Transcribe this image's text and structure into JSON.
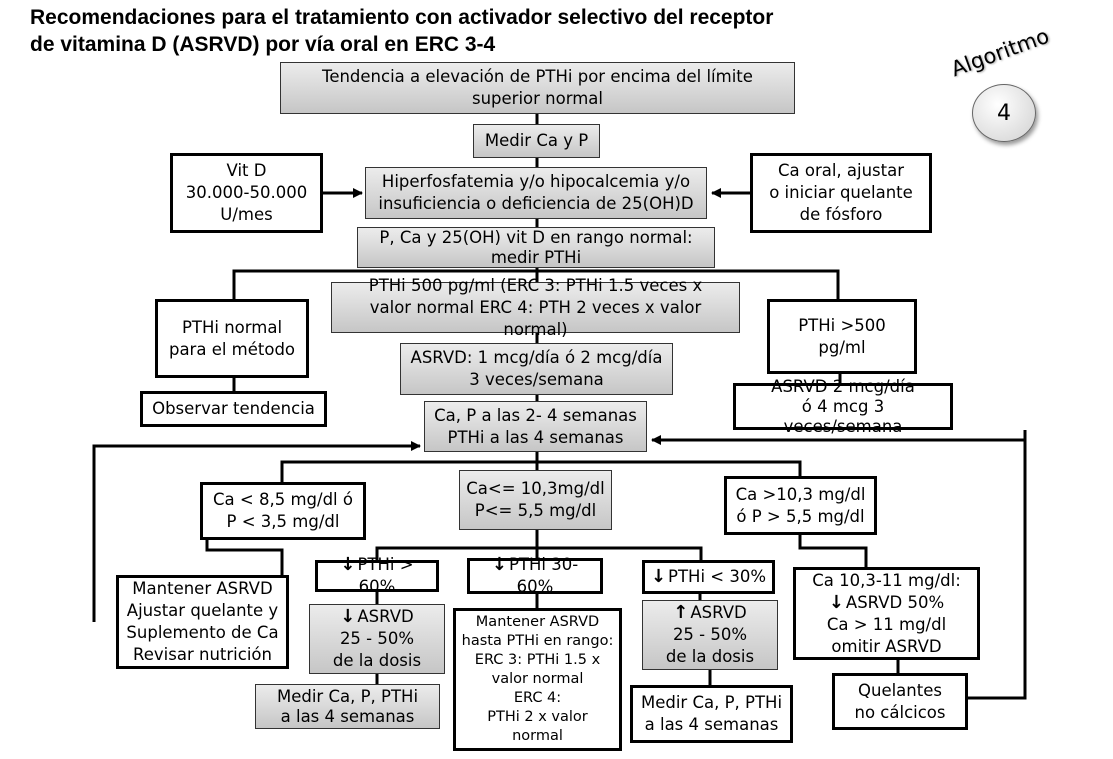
{
  "title": {
    "line1": "Recomendaciones para el tratamiento con activador selectivo del receptor",
    "line2": "de vitamina D (ASRVD) por vía oral en ERC 3-4"
  },
  "badge": {
    "label": "Algoritmo",
    "number": "4"
  },
  "nodes": {
    "tendencia": [
      "Tendencia a elevación de PTHi por encima del límite",
      "superior normal"
    ],
    "medir_ca_p": [
      "Medir Ca y P"
    ],
    "hiperfosfatemia": [
      "Hiperfosfatemia y/o hipocalcemia y/o",
      "insuficiencia o deficiencia de 25(OH)D"
    ],
    "vit_d": [
      "Vit D",
      "30.000-50.000",
      "U/mes"
    ],
    "ca_oral": [
      "Ca oral, ajustar",
      "o iniciar quelante",
      "de fósforo"
    ],
    "rango_normal": [
      "P, Ca y 25(OH) vit D en rango normal:",
      "medir PTHi"
    ],
    "pthi_500": [
      "PTHi 500 pg/ml (ERC 3: PTHi 1.5 veces x",
      "valor normal ERC 4: PTH 2 veces x valor normal)"
    ],
    "pthi_normal": [
      "PTHi normal",
      "para el método"
    ],
    "observar": [
      "Observar tendencia"
    ],
    "asrvd_dosis": [
      "ASRVD: 1 mcg/día ó 2 mcg/día",
      "3 veces/semana"
    ],
    "pthi_gt500": [
      "PTHi >500",
      "pg/ml"
    ],
    "asrvd_2mcg": [
      "ASRVD 2 mcg/día",
      "ó 4 mcg 3 veces/semana"
    ],
    "ca_p_semanas": [
      "Ca, P a las 2- 4 semanas",
      "PTHi a las 4 semanas"
    ],
    "ca_low": [
      "Ca < 8,5 mg/dl ó",
      "P < 3,5 mg/dl"
    ],
    "ca_mid": [
      "Ca<= 10,3mg/dl",
      "P<= 5,5 mg/dl"
    ],
    "ca_high": [
      "Ca >10,3 mg/dl",
      "ó P > 5,5 mg/dl"
    ],
    "mantener_ajustar": [
      "Mantener ASRVD",
      "Ajustar quelante y",
      "Suplemento de Ca",
      "Revisar nutrición"
    ],
    "pthi_gt60": [
      "PTHi > 60%"
    ],
    "pthi_30_60": [
      "PTHi 30-60%"
    ],
    "pthi_lt30": [
      "PTHi < 30%"
    ],
    "ca_10_11": [
      "Ca 10,3-11 mg/dl:",
      "ASRVD 50%",
      "Ca > 11 mg/dl",
      "omitir ASRVD"
    ],
    "asrvd_down": [
      "ASRVD",
      "25 - 50%",
      "de la dosis"
    ],
    "mantener_hasta": [
      "Mantener ASRVD",
      "hasta PTHi en rango:",
      "ERC 3: PTHi 1.5 x",
      "valor normal",
      "ERC 4:",
      "PTHi 2 x valor",
      "normal"
    ],
    "asrvd_up": [
      "ASRVD",
      "25 - 50%",
      "de la dosis"
    ],
    "medir_4sem_left": [
      "Medir Ca, P, PTHi",
      "a las 4 semanas"
    ],
    "medir_4sem_right": [
      "Medir Ca, P, PTHi",
      "a las 4 semanas"
    ],
    "quelantes": [
      "Quelantes",
      "no cálcicos"
    ]
  }
}
